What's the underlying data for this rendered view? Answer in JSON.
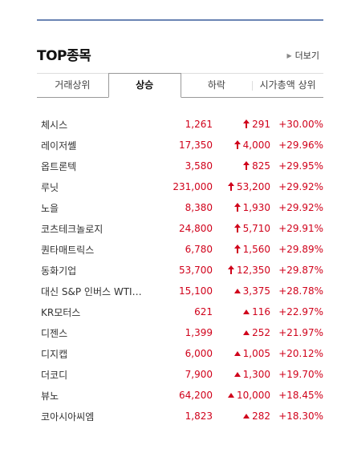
{
  "header": {
    "title": "TOP종목",
    "more_label": "더보기"
  },
  "tabs": [
    {
      "label": "거래상위",
      "active": false
    },
    {
      "label": "상승",
      "active": true
    },
    {
      "label": "하락",
      "active": false
    },
    {
      "label": "시가총액 상위",
      "active": false
    }
  ],
  "colors": {
    "rise": "#d0021b",
    "rule": "#6b84b4"
  },
  "stocks": [
    {
      "name": "체시스",
      "price": "1,261",
      "arrow": "upper-limit",
      "change": "291",
      "rate": "+30.00%"
    },
    {
      "name": "레이저쎌",
      "price": "17,350",
      "arrow": "upper-limit",
      "change": "4,000",
      "rate": "+29.96%"
    },
    {
      "name": "옵트론텍",
      "price": "3,580",
      "arrow": "upper-limit",
      "change": "825",
      "rate": "+29.95%"
    },
    {
      "name": "루닛",
      "price": "231,000",
      "arrow": "upper-limit",
      "change": "53,200",
      "rate": "+29.92%"
    },
    {
      "name": "노을",
      "price": "8,380",
      "arrow": "upper-limit",
      "change": "1,930",
      "rate": "+29.92%"
    },
    {
      "name": "코츠테크놀로지",
      "price": "24,800",
      "arrow": "upper-limit",
      "change": "5,710",
      "rate": "+29.91%"
    },
    {
      "name": "퀀타매트릭스",
      "price": "6,780",
      "arrow": "upper-limit",
      "change": "1,560",
      "rate": "+29.89%"
    },
    {
      "name": "동화기업",
      "price": "53,700",
      "arrow": "upper-limit",
      "change": "12,350",
      "rate": "+29.87%"
    },
    {
      "name": "대신 S&P 인버스 WTI…",
      "price": "15,100",
      "arrow": "rise",
      "change": "3,375",
      "rate": "+28.78%"
    },
    {
      "name": "KR모터스",
      "price": "621",
      "arrow": "rise",
      "change": "116",
      "rate": "+22.97%"
    },
    {
      "name": "디젠스",
      "price": "1,399",
      "arrow": "rise",
      "change": "252",
      "rate": "+21.97%"
    },
    {
      "name": "디지캡",
      "price": "6,000",
      "arrow": "rise",
      "change": "1,005",
      "rate": "+20.12%"
    },
    {
      "name": "더코디",
      "price": "7,900",
      "arrow": "rise",
      "change": "1,300",
      "rate": "+19.70%"
    },
    {
      "name": "뷰노",
      "price": "64,200",
      "arrow": "rise",
      "change": "10,000",
      "rate": "+18.45%"
    },
    {
      "name": "코아시아씨엠",
      "price": "1,823",
      "arrow": "rise",
      "change": "282",
      "rate": "+18.30%"
    }
  ]
}
